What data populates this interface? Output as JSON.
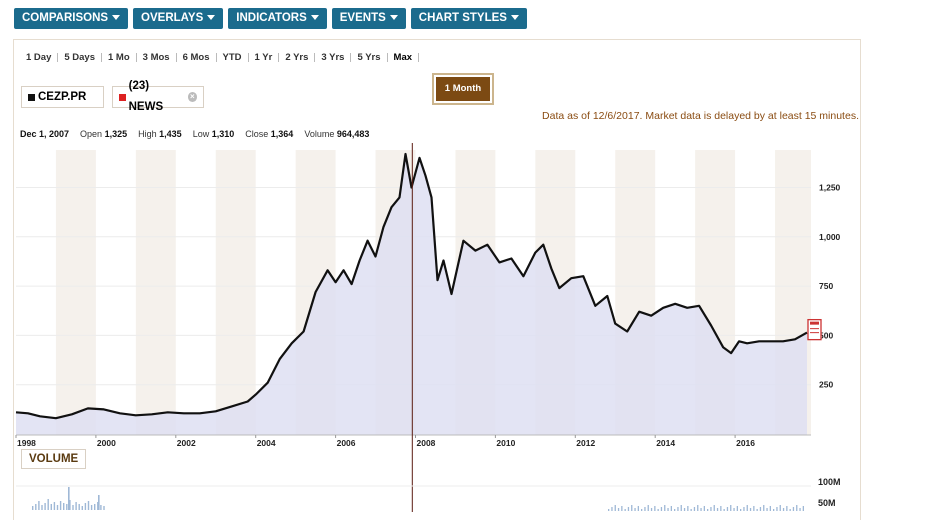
{
  "toolbar": {
    "buttons": [
      "COMPARISONS",
      "OVERLAYS",
      "INDICATORS",
      "EVENTS",
      "CHART STYLES"
    ]
  },
  "ranges": [
    "1 Day",
    "5 Days",
    "1 Mo",
    "3 Mos",
    "6 Mos",
    "YTD",
    "1 Yr",
    "2 Yrs",
    "3 Yrs",
    "5 Yrs",
    "Max"
  ],
  "selected_range": "Max",
  "symbol_tag": "CEZP.PR",
  "news_tag": "(23) NEWS",
  "period_button": "1 Month",
  "data_as_of": "Data as of 12/6/2017. Market data is delayed by at least 15 minutes.",
  "ohlc": {
    "date": "Dec 1, 2007",
    "open_label": "Open",
    "open": "1,325",
    "high_label": "High",
    "high": "1,435",
    "low_label": "Low",
    "low": "1,310",
    "close_label": "Close",
    "close": "1,364",
    "volume_label": "Volume",
    "volume": "964,483"
  },
  "volume_button": "VOLUME",
  "volume_axis": [
    "100M",
    "50M"
  ],
  "colors": {
    "toolbar_bg": "#1b6b8d",
    "accent_brown": "#7c4a13",
    "line": "#111111",
    "fill": "#dedff2",
    "band": "#f5f1ec",
    "crosshair": "#5a1a10",
    "symbol_square": "#111111",
    "news_square": "#dd2222"
  },
  "chart_data": {
    "type": "area",
    "title": "CEZP.PR",
    "xlabel": "",
    "ylabel": "",
    "xlim": [
      1998.0,
      2017.9
    ],
    "ylim": [
      0,
      1400
    ],
    "x_ticks": [
      "1998",
      "2000",
      "2002",
      "2004",
      "2006",
      "2008",
      "2010",
      "2012",
      "2014",
      "2016"
    ],
    "y_ticks": [
      "1,250",
      "1,000",
      "750",
      "500",
      "250"
    ],
    "y_tick_values": [
      1250,
      1000,
      750,
      500,
      250
    ],
    "crosshair_x": 2007.92,
    "last_value": 514,
    "series": [
      {
        "name": "CEZP.PR",
        "x": [
          1998.0,
          1998.3,
          1998.6,
          1999.0,
          1999.4,
          1999.8,
          2000.2,
          2000.6,
          2001.0,
          2001.4,
          2001.8,
          2002.2,
          2002.6,
          2003.0,
          2003.4,
          2003.8,
          2004.0,
          2004.3,
          2004.6,
          2004.9,
          2005.2,
          2005.5,
          2005.8,
          2006.0,
          2006.2,
          2006.4,
          2006.6,
          2006.8,
          2007.0,
          2007.2,
          2007.4,
          2007.6,
          2007.75,
          2007.9,
          2008.1,
          2008.25,
          2008.4,
          2008.55,
          2008.7,
          2008.9,
          2009.2,
          2009.5,
          2009.8,
          2010.1,
          2010.4,
          2010.7,
          2011.0,
          2011.2,
          2011.4,
          2011.6,
          2011.9,
          2012.2,
          2012.5,
          2012.8,
          2013.0,
          2013.3,
          2013.6,
          2013.9,
          2014.2,
          2014.5,
          2014.8,
          2015.1,
          2015.4,
          2015.7,
          2015.9,
          2016.1,
          2016.3,
          2016.6,
          2016.9,
          2017.2,
          2017.5,
          2017.8
        ],
        "values": [
          110,
          105,
          90,
          80,
          100,
          130,
          125,
          105,
          95,
          100,
          110,
          105,
          105,
          115,
          140,
          165,
          200,
          260,
          380,
          460,
          520,
          720,
          830,
          770,
          830,
          760,
          880,
          980,
          900,
          1050,
          1150,
          1200,
          1420,
          1250,
          1400,
          1310,
          1200,
          780,
          880,
          710,
          980,
          930,
          960,
          870,
          890,
          800,
          920,
          960,
          840,
          740,
          790,
          800,
          650,
          700,
          560,
          520,
          620,
          600,
          640,
          660,
          640,
          650,
          550,
          440,
          410,
          470,
          460,
          470,
          470,
          470,
          480,
          514
        ]
      }
    ]
  }
}
